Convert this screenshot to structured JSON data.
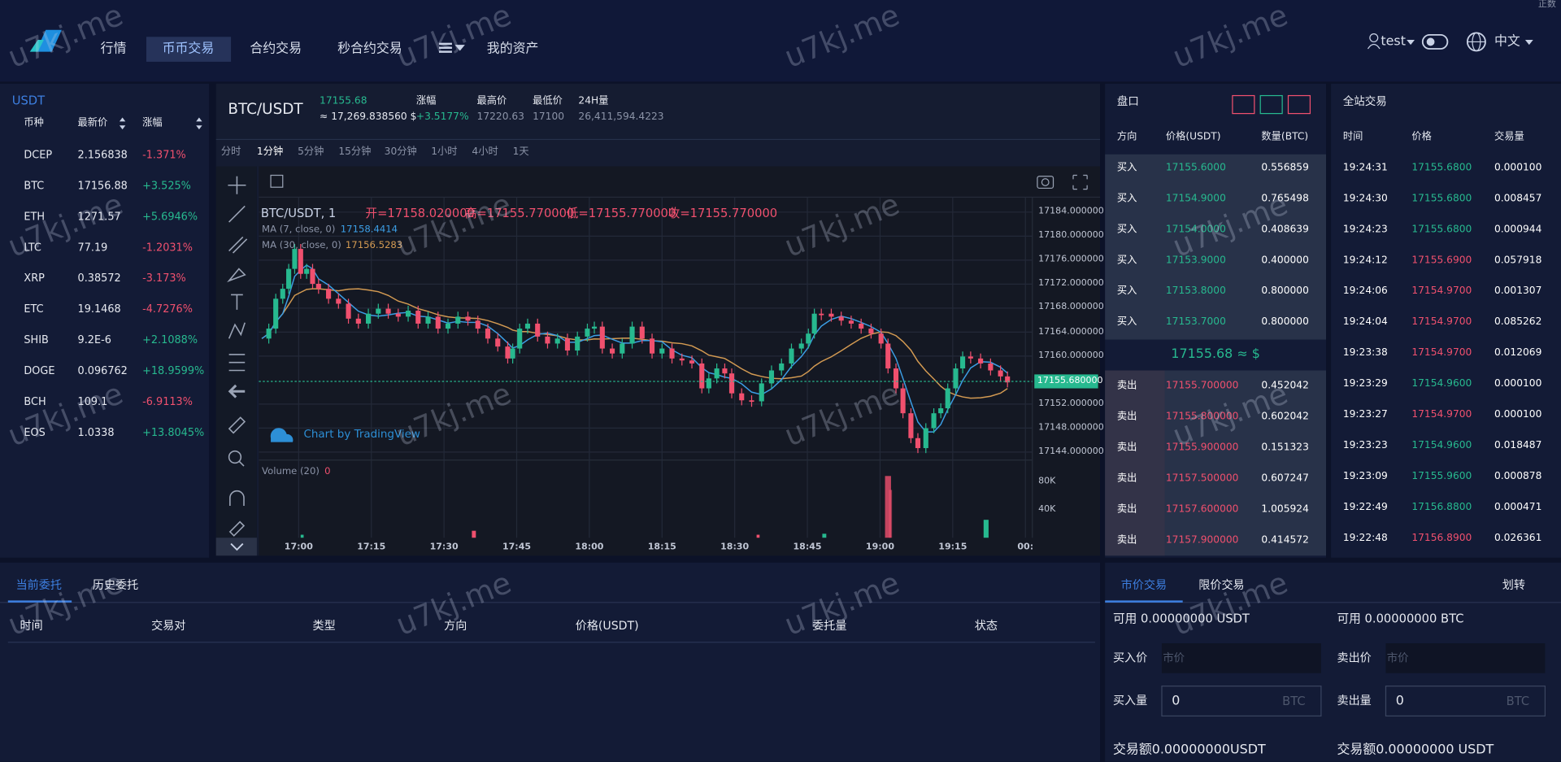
{
  "header": {
    "nav": [
      "行情",
      "币币交易",
      "合约交易",
      "秒合约交易",
      "我的资产"
    ],
    "nav_active": 1,
    "user": "test",
    "language": "中文",
    "corner_note": "正数"
  },
  "market": {
    "quote": "USDT",
    "columns": [
      "币种",
      "最新价",
      "涨幅"
    ],
    "rows": [
      [
        "DCEP",
        "2.156838",
        "-1.371%"
      ],
      [
        "BTC",
        "17156.88",
        "+3.525%"
      ],
      [
        "ETH",
        "1271.57",
        "+5.6946%"
      ],
      [
        "LTC",
        "77.19",
        "-1.2031%"
      ],
      [
        "XRP",
        "0.38572",
        "-3.173%"
      ],
      [
        "ETC",
        "19.1468",
        "-4.7276%"
      ],
      [
        "SHIB",
        "9.2E-6",
        "+2.1088%"
      ],
      [
        "DOGE",
        "0.096762",
        "+18.9599%"
      ],
      [
        "BCH",
        "109.1",
        "-6.9113%"
      ],
      [
        "EOS",
        "1.0338",
        "+13.8045%"
      ]
    ]
  },
  "ticker": {
    "pair": "BTC/USDT",
    "price": "17155.68",
    "price_fiat": "≈ 17,269.838560 $",
    "change_label": "涨幅",
    "change": "+3.5177%",
    "high_label": "最高价",
    "high": "17220.63",
    "low_label": "最低价",
    "low": "17100",
    "volume_label": "24H量",
    "volume": "26,411,594.4223"
  },
  "intervals": {
    "items": [
      "分时",
      "1分钟",
      "5分钟",
      "15分钟",
      "30分钟",
      "1小时",
      "4小时",
      "1天"
    ],
    "active": 1
  },
  "chart": {
    "legend": "BTC/USDT, 1",
    "ohlc": [
      "开=17158.020000",
      "高=17155.770000",
      "低=17155.770000",
      "收=17155.770000"
    ],
    "ma7_label": "MA (7, close, 0)",
    "ma7": "17158.4414",
    "ma30_label": "MA (30, close, 0)",
    "ma30": "17156.5283",
    "volume_label": "Volume (20)",
    "volume_value": "0",
    "price_axis": [
      "17184.000000",
      "17180.000000",
      "17176.000000",
      "17172.000000",
      "17168.000000",
      "17164.000000",
      "17160.000000",
      "17152.000000",
      "17148.000000",
      "17144.000000"
    ],
    "last_price": "17155.680000",
    "volume_axis": [
      "80K",
      "40K"
    ],
    "time_axis": [
      "17:00",
      "17:15",
      "17:30",
      "17:45",
      "18:00",
      "18:15",
      "18:30",
      "18:45",
      "19:00",
      "19:15",
      "00:"
    ],
    "attribution": "Chart by TradingView"
  },
  "orderbook": {
    "title": "盘口",
    "columns": [
      "方向",
      "价格(USDT)",
      "数量(BTC)"
    ],
    "bids": [
      [
        "买入",
        "17155.6000",
        "0.556859"
      ],
      [
        "买入",
        "17154.9000",
        "0.765498"
      ],
      [
        "买入",
        "17154.0000",
        "0.408639"
      ],
      [
        "买入",
        "17153.9000",
        "0.400000"
      ],
      [
        "买入",
        "17153.8000",
        "0.800000"
      ],
      [
        "买入",
        "17153.7000",
        "0.800000"
      ]
    ],
    "mid": "17155.68 ≈ $",
    "asks": [
      [
        "卖出",
        "17155.700000",
        "0.452042"
      ],
      [
        "卖出",
        "17155.800000",
        "0.602042"
      ],
      [
        "卖出",
        "17155.900000",
        "0.151323"
      ],
      [
        "卖出",
        "17157.500000",
        "0.607247"
      ],
      [
        "卖出",
        "17157.600000",
        "1.005924"
      ],
      [
        "卖出",
        "17157.900000",
        "0.414572"
      ]
    ]
  },
  "trades": {
    "title": "全站交易",
    "columns": [
      "时间",
      "价格",
      "交易量"
    ],
    "rows": [
      [
        "19:24:31",
        "17155.6800",
        "0.000100"
      ],
      [
        "19:24:30",
        "17155.6800",
        "0.008457"
      ],
      [
        "19:24:23",
        "17155.6800",
        "0.000944"
      ],
      [
        "19:24:12",
        "17155.6900",
        "0.057918"
      ],
      [
        "19:24:06",
        "17154.9700",
        "0.001307"
      ],
      [
        "19:24:04",
        "17154.9700",
        "0.085262"
      ],
      [
        "19:23:38",
        "17154.9700",
        "0.012069"
      ],
      [
        "19:23:29",
        "17154.9600",
        "0.000100"
      ],
      [
        "19:23:27",
        "17154.9700",
        "0.000100"
      ],
      [
        "19:23:23",
        "17154.9600",
        "0.018487"
      ],
      [
        "19:23:09",
        "17155.9600",
        "0.000878"
      ],
      [
        "19:22:49",
        "17156.8800",
        "0.000471"
      ],
      [
        "19:22:48",
        "17156.8900",
        "0.026361"
      ]
    ],
    "price_colors": [
      "#27b98f",
      "#27b98f",
      "#27b98f",
      "#f0506e",
      "#f0506e",
      "#f0506e",
      "#f0506e",
      "#27b98f",
      "#f0506e",
      "#27b98f",
      "#27b98f",
      "#27b98f",
      "#f0506e"
    ]
  },
  "orders": {
    "tabs": [
      "当前委托",
      "历史委托"
    ],
    "columns": [
      "时间",
      "交易对",
      "类型",
      "方向",
      "价格(USDT)",
      "委托量",
      "状态"
    ]
  },
  "trade_form": {
    "tabs": [
      "市价交易",
      "限价交易"
    ],
    "transfer": "划转",
    "buy": {
      "available": "可用 0.00000000 USDT",
      "price_label": "买入价",
      "price_placeholder": "市价",
      "amount_label": "买入量",
      "amount": "0",
      "unit": "BTC",
      "total": "交易额0.00000000USDT"
    },
    "sell": {
      "available": "可用 0.00000000 BTC",
      "price_label": "卖出价",
      "price_placeholder": "市价",
      "amount_label": "卖出量",
      "amount": "0",
      "unit": "BTC",
      "total": "交易额0.00000000 USDT"
    }
  },
  "watermark": "u7kj.me"
}
